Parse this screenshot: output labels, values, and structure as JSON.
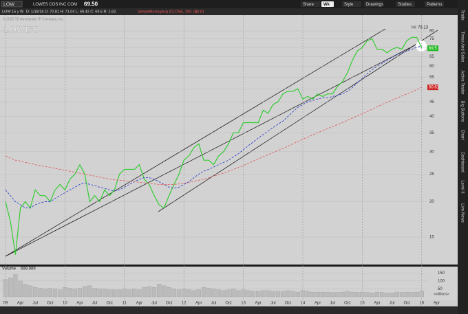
{
  "toolbar": {
    "symbol": "LOW",
    "company": "LOWES COS INC COM",
    "last": "69.50",
    "buttons": [
      "Share",
      "Wk",
      "Style",
      "Drawings",
      "Studies",
      "Patterns"
    ]
  },
  "status": {
    "symbol": "LOW 15 y W",
    "ohlc": "D: 1/18/16  O: 70.81  H: 71.04  L: 69.42  C: 69.5  R: 1.62",
    "study": "SimpleMovingAvg (CLOSE, 200, 0)",
    "study_value": "50.61"
  },
  "copyright": "© 2015 TD Ameritrade IP Company, Inc.",
  "watermark": "LOWE'S",
  "sidebar": [
    "Trade",
    "Times And Sales",
    "Active Trader",
    "Big Buttons",
    "Chart",
    "Dashboard",
    "Level II",
    "Live News"
  ],
  "chart_data": {
    "type": "line",
    "log_scale": true,
    "grid": true,
    "x": [
      "2009-01",
      "2009-02",
      "2009-03",
      "2009-04",
      "2009-05",
      "2009-06",
      "2009-07",
      "2009-08",
      "2009-09",
      "2009-10",
      "2009-11",
      "2009-12",
      "2010-01",
      "2010-02",
      "2010-03",
      "2010-04",
      "2010-05",
      "2010-06",
      "2010-07",
      "2010-08",
      "2010-09",
      "2010-10",
      "2010-11",
      "2010-12",
      "2011-01",
      "2011-02",
      "2011-03",
      "2011-04",
      "2011-05",
      "2011-06",
      "2011-07",
      "2011-08",
      "2011-09",
      "2011-10",
      "2011-11",
      "2011-12",
      "2012-01",
      "2012-02",
      "2012-03",
      "2012-04",
      "2012-05",
      "2012-06",
      "2012-07",
      "2012-08",
      "2012-09",
      "2012-10",
      "2012-11",
      "2012-12",
      "2013-01",
      "2013-02",
      "2013-03",
      "2013-04",
      "2013-05",
      "2013-06",
      "2013-07",
      "2013-08",
      "2013-09",
      "2013-10",
      "2013-11",
      "2013-12",
      "2014-01",
      "2014-02",
      "2014-03",
      "2014-04",
      "2014-05",
      "2014-06",
      "2014-07",
      "2014-08",
      "2014-09",
      "2014-10",
      "2014-11",
      "2014-12",
      "2015-01",
      "2015-02",
      "2015-03",
      "2015-04",
      "2015-05",
      "2015-06",
      "2015-07",
      "2015-08",
      "2015-09",
      "2015-10",
      "2015-11",
      "2015-12",
      "2016-01"
    ],
    "series": [
      {
        "name": "LOW",
        "color": "#33cc33",
        "dash": false,
        "values": [
          20,
          17,
          13,
          19,
          20,
          19,
          22,
          21,
          21,
          20,
          22,
          23,
          22,
          24,
          25,
          27,
          25,
          20,
          21,
          20,
          22,
          21,
          22,
          25,
          26,
          26,
          26,
          27,
          24,
          23,
          21,
          19.5,
          19,
          21,
          23,
          25,
          28,
          29,
          31,
          32,
          28,
          28,
          27,
          29,
          30,
          32,
          35,
          35,
          38,
          38,
          38,
          38,
          42,
          41,
          44,
          45,
          48,
          49,
          49,
          50,
          46,
          47,
          46,
          48,
          47,
          48,
          48,
          51,
          53,
          57,
          63,
          68,
          70,
          74,
          75,
          69,
          69,
          67,
          69,
          70,
          69,
          74,
          76,
          76,
          69.5
        ]
      },
      {
        "name": "SMA50",
        "color": "#3344cc",
        "dash": true,
        "values": [
          22,
          21,
          20,
          19.5,
          19,
          19,
          19.5,
          19.8,
          20,
          20,
          20.5,
          21,
          21.5,
          22,
          22.5,
          23,
          23.3,
          23,
          22.8,
          22.5,
          22.3,
          22,
          21.8,
          22,
          22.5,
          23,
          23.5,
          24,
          24.3,
          24.3,
          24,
          23.5,
          23,
          22.5,
          22.3,
          22.5,
          23,
          23.5,
          24.3,
          25,
          25.6,
          26,
          26.5,
          27,
          27.5,
          28,
          28.8,
          29.5,
          30.5,
          31.5,
          32.5,
          33.5,
          34.5,
          35.5,
          36.5,
          37.5,
          38.5,
          40,
          41.5,
          43,
          44,
          45,
          45.5,
          46,
          46.5,
          46.5,
          47,
          47.5,
          48,
          49,
          50.5,
          52.5,
          54.5,
          56.5,
          58.5,
          60,
          61.5,
          63,
          64.5,
          66,
          67,
          68,
          69,
          70,
          71
        ]
      },
      {
        "name": "SMA200",
        "color": "#e06060",
        "dash": true,
        "values": [
          29,
          28.5,
          28,
          27.8,
          27.5,
          27.3,
          27,
          26.8,
          26.6,
          26.4,
          26.2,
          26,
          25.8,
          25.6,
          25.4,
          25.2,
          25,
          24.8,
          24.6,
          24.4,
          24.2,
          24,
          23.9,
          23.8,
          23.7,
          23.6,
          23.5,
          23.4,
          23.3,
          23.2,
          23.1,
          23,
          23,
          23,
          23,
          23.1,
          23.2,
          23.4,
          23.6,
          23.8,
          24,
          24.3,
          24.6,
          24.9,
          25.2,
          25.6,
          26,
          26.4,
          26.8,
          27.3,
          27.8,
          28.3,
          28.8,
          29.3,
          29.8,
          30.3,
          30.8,
          31.4,
          32,
          32.6,
          33.2,
          33.8,
          34.4,
          35,
          35.6,
          36.2,
          36.8,
          37.4,
          38,
          38.7,
          39.4,
          40.1,
          40.8,
          41.6,
          42.4,
          43.2,
          44,
          44.8,
          45.6,
          46.4,
          47.2,
          48,
          48.8,
          49.7,
          50.61
        ]
      }
    ],
    "ylim": [
      12,
      91
    ],
    "yticks": [
      15,
      20,
      25,
      30,
      35,
      40,
      45,
      50,
      55,
      60,
      65,
      70,
      75,
      80
    ],
    "xticks": [
      {
        "value": "2009-01",
        "label": "09"
      },
      {
        "value": "2009-04",
        "label": "Apr"
      },
      {
        "value": "2009-07",
        "label": "Jul"
      },
      {
        "value": "2009-10",
        "label": "Oct"
      },
      {
        "value": "2010-01",
        "label": "10"
      },
      {
        "value": "2010-04",
        "label": "Apr"
      },
      {
        "value": "2010-07",
        "label": "Jul"
      },
      {
        "value": "2010-10",
        "label": "Oct"
      },
      {
        "value": "2011-01",
        "label": "11"
      },
      {
        "value": "2011-04",
        "label": "Apr"
      },
      {
        "value": "2011-07",
        "label": "Jul"
      },
      {
        "value": "2011-10",
        "label": "Oct"
      },
      {
        "value": "2012-01",
        "label": "12"
      },
      {
        "value": "2012-04",
        "label": "Apr"
      },
      {
        "value": "2012-07",
        "label": "Jul"
      },
      {
        "value": "2012-10",
        "label": "Oct"
      },
      {
        "value": "2013-01",
        "label": "13"
      },
      {
        "value": "2013-04",
        "label": "Apr"
      },
      {
        "value": "2013-07",
        "label": "Jul"
      },
      {
        "value": "2013-10",
        "label": "Oct"
      },
      {
        "value": "2014-01",
        "label": "14"
      },
      {
        "value": "2014-04",
        "label": "Apr"
      },
      {
        "value": "2014-07",
        "label": "Jul"
      },
      {
        "value": "2014-10",
        "label": "Oct"
      },
      {
        "value": "2015-01",
        "label": "15"
      },
      {
        "value": "2015-04",
        "label": "Apr"
      },
      {
        "value": "2015-07",
        "label": "Jul"
      },
      {
        "value": "2015-10",
        "label": "Oct"
      },
      {
        "value": "2016-01",
        "label": "16"
      },
      {
        "value": "2016-04",
        "label": "Apr"
      }
    ],
    "price_tags": [
      {
        "value": 69.5,
        "color": "#22bb22"
      },
      {
        "value": 50.61,
        "color": "#cc2222"
      }
    ],
    "high_label": "Hi: 78.13",
    "volume": {
      "title": "Volume",
      "last": "699,989",
      "color": "#bbbbbb",
      "unit": "<millions>",
      "values": [
        110,
        120,
        140,
        100,
        80,
        70,
        60,
        55,
        50,
        55,
        50,
        45,
        60,
        55,
        50,
        55,
        65,
        70,
        55,
        50,
        50,
        45,
        45,
        45,
        50,
        45,
        50,
        45,
        60,
        65,
        60,
        80,
        70,
        60,
        50,
        45,
        50,
        45,
        40,
        45,
        60,
        55,
        50,
        45,
        40,
        45,
        50,
        40,
        45,
        40,
        35,
        35,
        40,
        40,
        35,
        35,
        35,
        40,
        35,
        30,
        40,
        35,
        30,
        30,
        30,
        30,
        28,
        28,
        30,
        35,
        30,
        28,
        30,
        28,
        25,
        30,
        28,
        25,
        25,
        30,
        28,
        30,
        28,
        30,
        35
      ],
      "ylim": [
        0,
        160
      ],
      "yticks": [
        50,
        100,
        150
      ]
    }
  }
}
